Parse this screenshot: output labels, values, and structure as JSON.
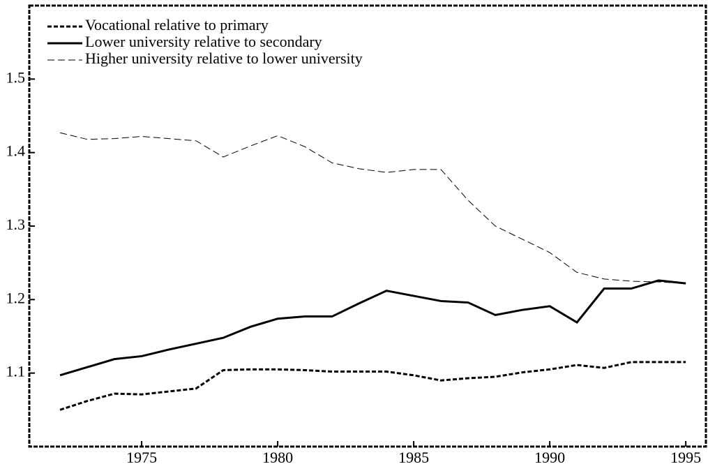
{
  "chart_data": {
    "type": "line",
    "x": [
      1972,
      1973,
      1974,
      1975,
      1976,
      1977,
      1978,
      1979,
      1980,
      1981,
      1982,
      1983,
      1984,
      1985,
      1986,
      1987,
      1988,
      1989,
      1990,
      1991,
      1992,
      1993,
      1994,
      1995
    ],
    "series": [
      {
        "name": "Vocational relative to primary",
        "color": "#000000",
        "style": "dotted",
        "values": [
          1.05,
          1.062,
          1.072,
          1.071,
          1.075,
          1.079,
          1.104,
          1.105,
          1.105,
          1.104,
          1.102,
          1.102,
          1.102,
          1.097,
          1.09,
          1.093,
          1.095,
          1.101,
          1.105,
          1.111,
          1.107,
          1.115,
          1.115,
          1.115
        ]
      },
      {
        "name": "Lower university relative to secondary",
        "color": "#000000",
        "style": "solid",
        "values": [
          1.097,
          1.108,
          1.119,
          1.123,
          1.132,
          1.14,
          1.148,
          1.163,
          1.174,
          1.177,
          1.177,
          1.195,
          1.212,
          1.205,
          1.198,
          1.196,
          1.179,
          1.186,
          1.191,
          1.169,
          1.215,
          1.215,
          1.226,
          1.222
        ]
      },
      {
        "name": "Higher university relative to lower university",
        "color": "#000000",
        "style": "dashed",
        "values": [
          1.427,
          1.418,
          1.419,
          1.422,
          1.419,
          1.416,
          1.394,
          1.409,
          1.423,
          1.408,
          1.386,
          1.378,
          1.373,
          1.377,
          1.377,
          1.335,
          1.3,
          1.282,
          1.264,
          1.237,
          1.228,
          1.225,
          1.224,
          1.222
        ]
      }
    ],
    "xlim": [
      1970.87,
      1995.74
    ],
    "xticks": [
      1975,
      1980,
      1985,
      1990,
      1995
    ],
    "ylim": [
      1.0,
      1.6
    ],
    "yticks": [
      1.1,
      1.2,
      1.3,
      1.4,
      1.5
    ],
    "legend": "top-left",
    "grid": false
  }
}
